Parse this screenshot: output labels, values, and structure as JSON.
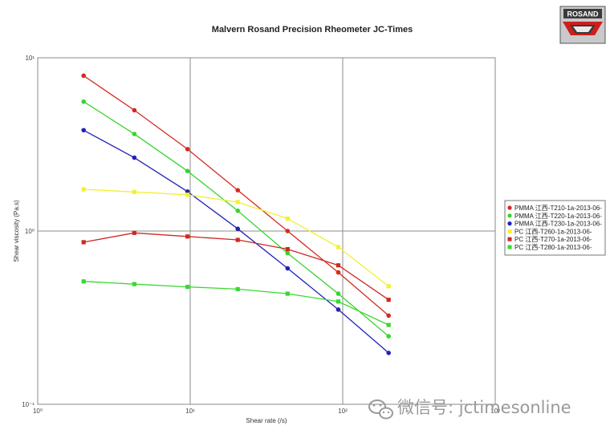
{
  "brand": {
    "logo_text": "ROSAND"
  },
  "watermark": {
    "text": "微信号: jctimesonline"
  },
  "chart_data": {
    "type": "line",
    "title": "Malvern Rosand Precision Rheometer JC-Times",
    "xlabel": "Shear rate (/s)",
    "ylabel": "Shear viscosity (Pa.s)",
    "xscale": "log",
    "yscale": "log",
    "xlim": [
      1,
      1000
    ],
    "ylim": [
      0.1,
      10
    ],
    "x_ticks": [
      1,
      10,
      100,
      1000
    ],
    "x_tick_labels": [
      "10⁰",
      "10¹",
      "10²",
      "10³"
    ],
    "y_ticks": [
      0.1,
      1,
      10
    ],
    "y_tick_labels": [
      "10⁻¹",
      "10⁰",
      "10¹"
    ],
    "grid": "major",
    "legend_position": "right",
    "series": [
      {
        "name": "PMMA 江西-T210-1a-2013-06-",
        "color": "#d42a1e",
        "marker": "circle",
        "x": [
          2.0,
          4.3,
          9.6,
          20.5,
          43.5,
          93.5,
          200
        ],
        "y": [
          7.88,
          4.98,
          2.97,
          1.72,
          1.0,
          0.577,
          0.325
        ]
      },
      {
        "name": "PMMA 江西-T220-1a-2013-06-",
        "color": "#37d42f",
        "marker": "circle",
        "x": [
          2.0,
          4.3,
          9.6,
          20.5,
          43.5,
          93.5,
          200
        ],
        "y": [
          5.58,
          3.63,
          2.22,
          1.31,
          0.745,
          0.435,
          0.247
        ]
      },
      {
        "name": "PMMA 江西-T230-1a-2013-06-",
        "color": "#2222b8",
        "marker": "circle",
        "x": [
          2.0,
          4.3,
          9.6,
          20.5,
          43.5,
          93.5,
          200
        ],
        "y": [
          3.82,
          2.65,
          1.69,
          1.03,
          0.609,
          0.352,
          0.198
        ]
      },
      {
        "name": "PC 江西-T260-1a-2013-06-",
        "color": "#f2f032",
        "marker": "square",
        "x": [
          2.0,
          4.3,
          9.6,
          20.5,
          43.5,
          93.5,
          200
        ],
        "y": [
          1.74,
          1.68,
          1.62,
          1.47,
          1.18,
          0.808,
          0.48
        ]
      },
      {
        "name": "PC 江西-T270-1a-2013-06-",
        "color": "#cc2a20",
        "marker": "square",
        "x": [
          2.0,
          4.3,
          9.6,
          20.5,
          43.5,
          93.5,
          200
        ],
        "y": [
          0.862,
          0.976,
          0.93,
          0.889,
          0.786,
          0.634,
          0.401
        ]
      },
      {
        "name": "PC 江西-T280-1a-2013-06-",
        "color": "#3ad830",
        "marker": "square",
        "x": [
          2.0,
          4.3,
          9.6,
          20.5,
          43.5,
          93.5,
          200
        ],
        "y": [
          0.512,
          0.494,
          0.476,
          0.462,
          0.435,
          0.392,
          0.287
        ]
      }
    ]
  }
}
